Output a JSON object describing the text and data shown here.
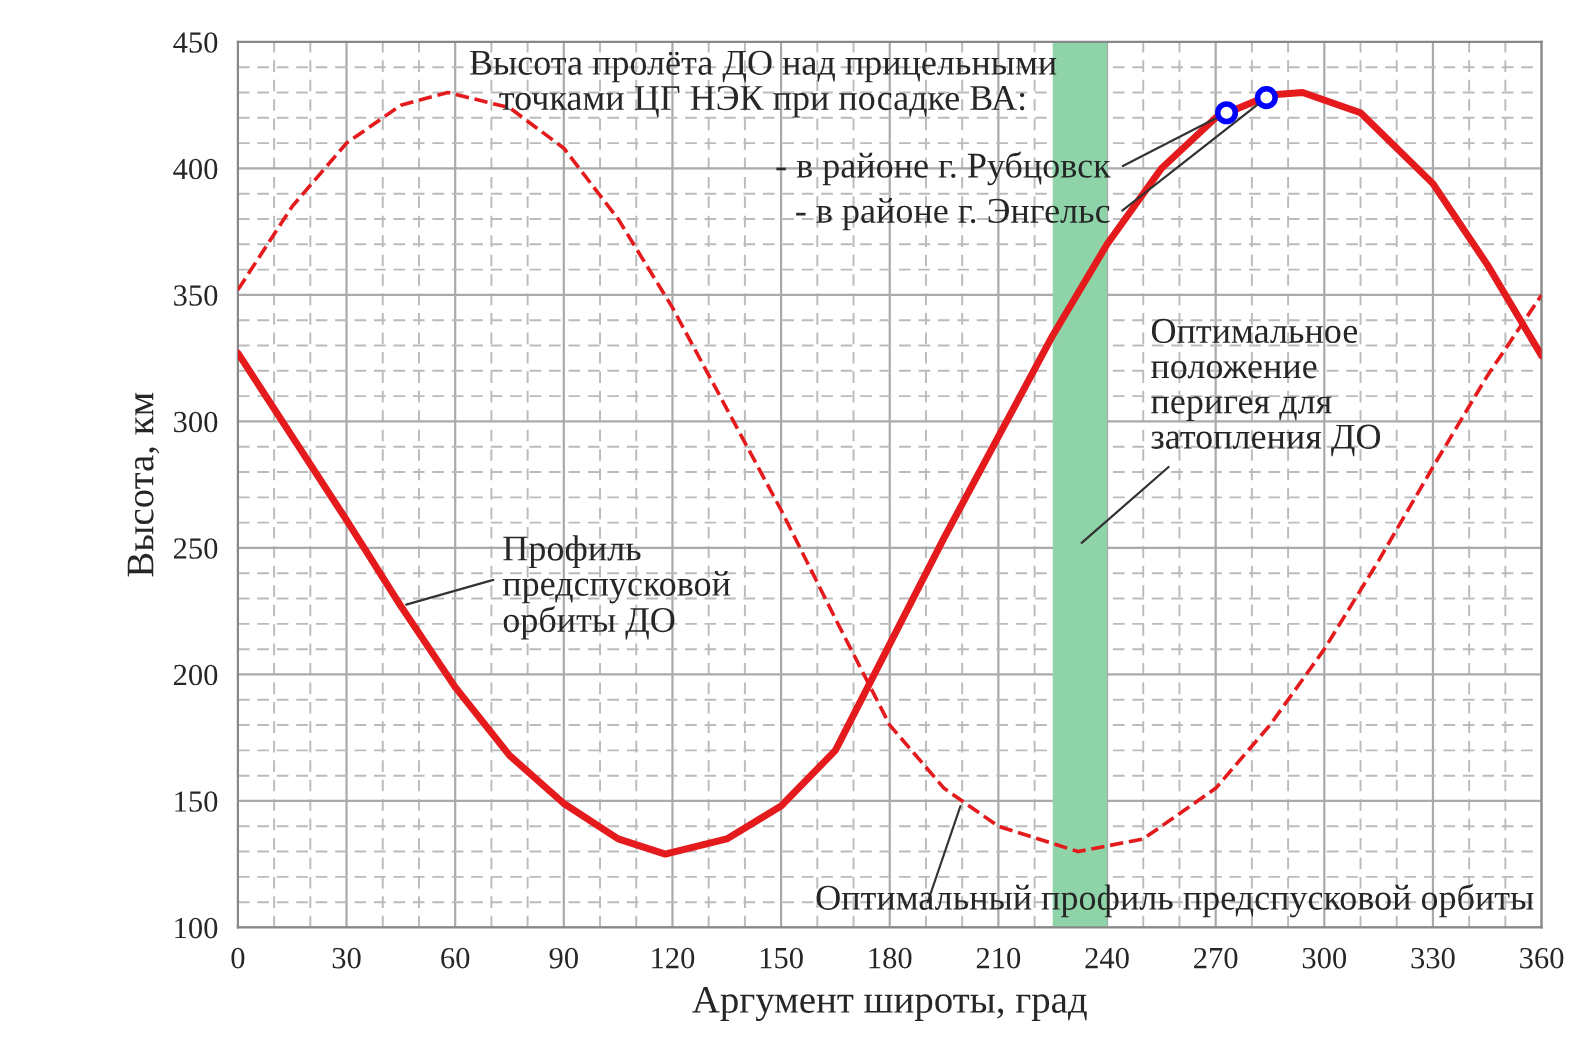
{
  "chart_data": {
    "type": "line",
    "xlabel": "Аргумент широты, град",
    "ylabel": "Высота, км",
    "xlim": [
      0,
      360
    ],
    "xticks": [
      0,
      30,
      60,
      90,
      120,
      150,
      180,
      210,
      240,
      270,
      300,
      330,
      360
    ],
    "ylim": [
      100,
      450
    ],
    "yticks": [
      100,
      150,
      200,
      250,
      300,
      350,
      400,
      450
    ],
    "grid": true,
    "legend": false,
    "series": [
      {
        "color": "#e41a1c",
        "line_style": "solid",
        "x": [
          0,
          15,
          30,
          45,
          60,
          75,
          90,
          105,
          118,
          135,
          150,
          165,
          180,
          195,
          210,
          225,
          240,
          255,
          270,
          285,
          294,
          310,
          330,
          345,
          360
        ],
        "values": [
          327,
          294,
          261,
          227,
          195,
          168,
          149,
          135,
          129,
          135,
          148,
          170,
          212,
          254,
          294,
          334,
          370,
          400,
          420,
          429,
          430,
          422,
          394,
          362,
          326
        ]
      },
      {
        "color": "#e41a1c",
        "line_style": "dashed",
        "x": [
          0,
          15,
          30,
          45,
          58,
          75,
          90,
          105,
          120,
          135,
          150,
          165,
          180,
          195,
          210,
          232,
          250,
          270,
          285,
          300,
          315,
          330,
          345,
          360
        ],
        "values": [
          352,
          385,
          410,
          425,
          430,
          424,
          408,
          380,
          345,
          305,
          265,
          222,
          180,
          155,
          140,
          130,
          135,
          155,
          180,
          210,
          245,
          282,
          318,
          350
        ]
      },
      {
        "type": "scatter",
        "color": "#0000ff",
        "marker": "circle",
        "x": [
          273,
          284
        ],
        "values": [
          422,
          428
        ]
      }
    ],
    "bands": [
      {
        "axis": "x",
        "from": 225,
        "to": 240,
        "color": "#8fd4a8"
      }
    ],
    "annotations": [
      "Высота пролёта ДО над прицельными\nточками ЦГ НЭК при посадке ВА:",
      {
        "text": "- в районе г. Рубцовск",
        "x": 273,
        "y": 422
      },
      {
        "text": "- в районе г. Энгельс",
        "x": 284,
        "y": 428
      },
      "Оптимальное\nположение\nперигея для\nзатопления ДО",
      {
        "text": "Профиль\nпредспусковой\nорбиты ДО",
        "x": 45,
        "y": 227
      },
      {
        "text": "Оптимальный профиль предспусковой орбиты",
        "x": 200,
        "y": 150
      }
    ]
  }
}
